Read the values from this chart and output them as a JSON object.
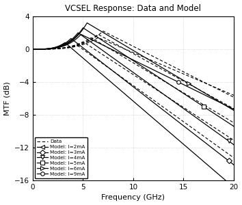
{
  "title": "VCSEL Response: Data and Model",
  "xlabel": "Frequency (GHz)",
  "ylabel": "MTF (dB)",
  "xlim": [
    0,
    20
  ],
  "ylim": [
    -16,
    4
  ],
  "xticks": [
    0,
    5,
    10,
    15,
    20
  ],
  "yticks": [
    -16,
    -12,
    -8,
    -4,
    0,
    4
  ],
  "currents": [
    2,
    3,
    4,
    5,
    6,
    9
  ],
  "model_peaks": [
    0.8,
    1.3,
    2.0,
    2.6,
    3.2,
    1.8
  ],
  "model_peak_freqs": [
    3.2,
    3.8,
    4.5,
    5.0,
    5.4,
    4.8
  ],
  "model_slopes": [
    1.05,
    0.95,
    0.88,
    0.8,
    0.73,
    0.6
  ],
  "data_peaks": [
    0.4,
    0.9,
    1.4,
    1.8,
    2.2,
    1.4
  ],
  "data_peak_freqs": [
    4.5,
    5.0,
    5.8,
    6.5,
    7.0,
    6.5
  ],
  "data_slopes": [
    0.88,
    0.8,
    0.73,
    0.67,
    0.62,
    0.52
  ],
  "markers": [
    "<",
    "D",
    "v",
    "s",
    ">",
    "o"
  ],
  "marker_freq": [
    19.5,
    19.5,
    19.5,
    17.0,
    15.5,
    14.5
  ],
  "background_color": "#ffffff",
  "grid_color": "#b0b0b0"
}
